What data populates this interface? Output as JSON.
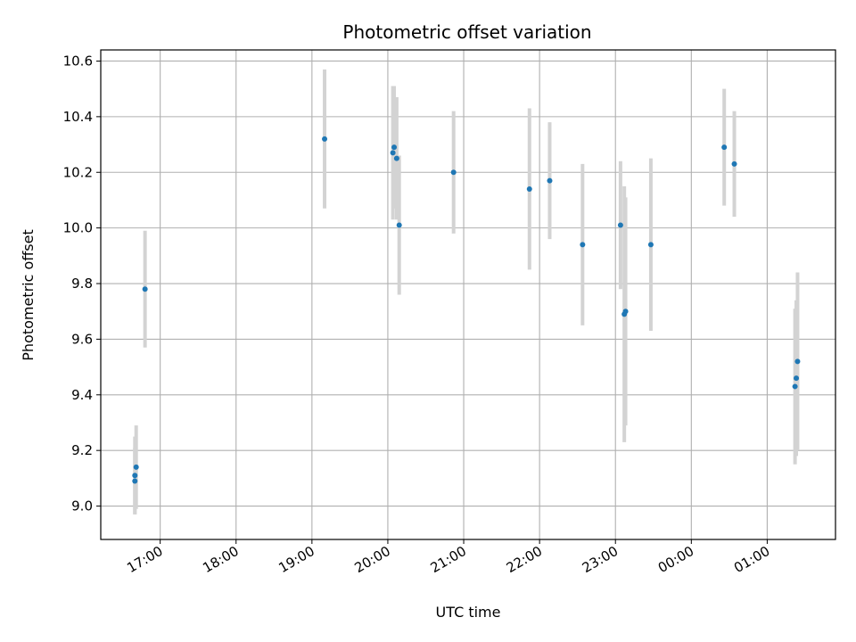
{
  "chart_data": {
    "type": "scatter",
    "title": "Photometric offset variation",
    "xlabel": "UTC time",
    "ylabel": "Photometric offset",
    "x_ticks": [
      "17:00",
      "18:00",
      "19:00",
      "20:00",
      "21:00",
      "22:00",
      "23:00",
      "00:00",
      "01:00"
    ],
    "y_ticks": [
      "9.0",
      "9.2",
      "9.4",
      "9.6",
      "9.8",
      "10.0",
      "10.2",
      "10.4",
      "10.6"
    ],
    "xlim": [
      "16:13",
      "01:54"
    ],
    "ylim": [
      8.88,
      10.64
    ],
    "grid": true,
    "errorbar_color": "#d3d3d3",
    "marker_color": "#1f77b4",
    "points": [
      {
        "t": "16:40",
        "y": 9.09,
        "err": 0.12
      },
      {
        "t": "16:40",
        "y": 9.11,
        "err": 0.14
      },
      {
        "t": "16:41",
        "y": 9.14,
        "err": 0.15
      },
      {
        "t": "16:48",
        "y": 9.78,
        "err": 0.21
      },
      {
        "t": "19:10",
        "y": 10.32,
        "err": 0.25
      },
      {
        "t": "20:04",
        "y": 10.27,
        "err": 0.24
      },
      {
        "t": "20:05",
        "y": 10.29,
        "err": 0.22
      },
      {
        "t": "20:07",
        "y": 10.25,
        "err": 0.22
      },
      {
        "t": "20:09",
        "y": 10.01,
        "err": 0.25
      },
      {
        "t": "20:52",
        "y": 10.2,
        "err": 0.22
      },
      {
        "t": "21:52",
        "y": 10.14,
        "err": 0.29
      },
      {
        "t": "22:08",
        "y": 10.17,
        "err": 0.21
      },
      {
        "t": "22:34",
        "y": 9.94,
        "err": 0.29
      },
      {
        "t": "23:04",
        "y": 10.01,
        "err": 0.23
      },
      {
        "t": "23:07",
        "y": 9.69,
        "err": 0.46
      },
      {
        "t": "23:08",
        "y": 9.7,
        "err": 0.41
      },
      {
        "t": "23:28",
        "y": 9.94,
        "err": 0.31
      },
      {
        "t": "00:26",
        "y": 10.29,
        "err": 0.21
      },
      {
        "t": "00:34",
        "y": 10.23,
        "err": 0.19
      },
      {
        "t": "01:22",
        "y": 9.43,
        "err": 0.28
      },
      {
        "t": "01:23",
        "y": 9.46,
        "err": 0.28
      },
      {
        "t": "01:24",
        "y": 9.52,
        "err": 0.32
      }
    ]
  }
}
